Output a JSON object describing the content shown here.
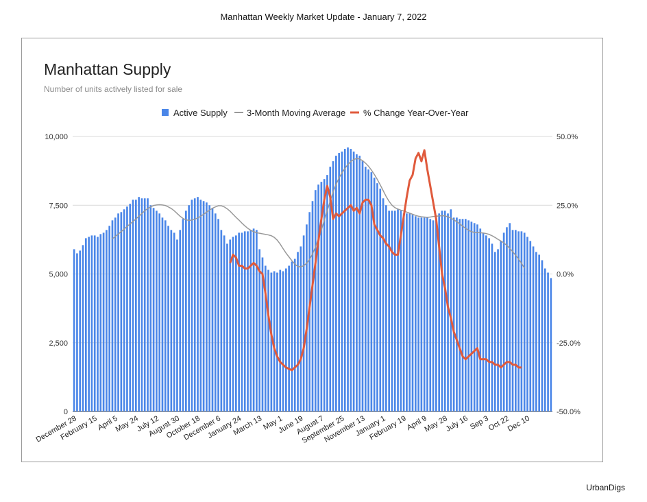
{
  "header": {
    "title": "Manhattan Weekly Market Update - January 7, 2022"
  },
  "brand": {
    "name": "UrbanDigs"
  },
  "colors": {
    "bars": "#4a86e8",
    "moving_average": "#999999",
    "yoy": "#e05a3c",
    "grid": "#d9d9d9"
  },
  "chart_data": {
    "type": "bar",
    "title": "Manhattan Supply",
    "subtitle": "Number of units actively listed for sale",
    "legend": {
      "placement": "top",
      "entries": [
        "Active Supply",
        "3-Month Moving Average",
        "% Change Year-Over-Year"
      ]
    },
    "y_left": {
      "min": 0,
      "max": 10000,
      "ticks": [
        0,
        2500,
        5000,
        7500,
        10000
      ],
      "tick_labels": [
        "0",
        "2,500",
        "5,000",
        "7,500",
        "10,000"
      ]
    },
    "y_right": {
      "min": -50,
      "max": 50,
      "ticks": [
        -50,
        -25,
        0,
        25,
        50
      ],
      "tick_labels": [
        "-50.0%",
        "-25.0%",
        "0.0%",
        "25.0%",
        "50.0%"
      ]
    },
    "grid": true,
    "x_labels": [
      {
        "index": 0,
        "label": "December 28"
      },
      {
        "index": 7,
        "label": "February 15"
      },
      {
        "index": 14,
        "label": "April 5"
      },
      {
        "index": 21,
        "label": "May 24"
      },
      {
        "index": 28,
        "label": "July 12"
      },
      {
        "index": 35,
        "label": "August 30"
      },
      {
        "index": 42,
        "label": "October 18"
      },
      {
        "index": 49,
        "label": "December 6"
      },
      {
        "index": 56,
        "label": "January 24"
      },
      {
        "index": 63,
        "label": "March 13"
      },
      {
        "index": 70,
        "label": "May 1"
      },
      {
        "index": 77,
        "label": "June 19"
      },
      {
        "index": 84,
        "label": "August 7"
      },
      {
        "index": 91,
        "label": "September 25"
      },
      {
        "index": 98,
        "label": "November 13"
      },
      {
        "index": 105,
        "label": "January 1"
      },
      {
        "index": 112,
        "label": "February 19"
      },
      {
        "index": 119,
        "label": "April 9"
      },
      {
        "index": 126,
        "label": "May 28"
      },
      {
        "index": 133,
        "label": "July 16"
      },
      {
        "index": 140,
        "label": "Sep 3"
      },
      {
        "index": 147,
        "label": "Oct 22"
      },
      {
        "index": 154,
        "label": "Dec 10"
      }
    ],
    "series": [
      {
        "name": "Active Supply",
        "type": "bar",
        "values": [
          5900,
          5750,
          5850,
          6050,
          6300,
          6350,
          6400,
          6400,
          6350,
          6450,
          6500,
          6600,
          6750,
          6950,
          7050,
          7200,
          7250,
          7350,
          7450,
          7550,
          7700,
          7700,
          7800,
          7750,
          7750,
          7750,
          7500,
          7400,
          7300,
          7200,
          7050,
          6950,
          6750,
          6600,
          6500,
          6250,
          6600,
          7000,
          7300,
          7500,
          7700,
          7750,
          7800,
          7700,
          7650,
          7600,
          7500,
          7400,
          7200,
          7000,
          6600,
          6400,
          6100,
          6250,
          6350,
          6400,
          6500,
          6500,
          6550,
          6550,
          6600,
          6650,
          6600,
          5900,
          5600,
          5300,
          5150,
          5050,
          5100,
          5050,
          5150,
          5100,
          5200,
          5300,
          5450,
          5550,
          5800,
          6000,
          6400,
          6800,
          7250,
          7650,
          8050,
          8250,
          8350,
          8450,
          8600,
          8900,
          9100,
          9300,
          9400,
          9450,
          9550,
          9600,
          9550,
          9450,
          9350,
          9300,
          9100,
          8900,
          8800,
          8700,
          8500,
          8300,
          8100,
          7750,
          7500,
          7300,
          7300,
          7300,
          7350,
          7300,
          7200,
          7200,
          7200,
          7150,
          7100,
          7050,
          7050,
          7050,
          7050,
          7000,
          6950,
          6950,
          7200,
          7300,
          7300,
          7200,
          7350,
          7050,
          7050,
          7000,
          7000,
          7000,
          6950,
          6900,
          6850,
          6800,
          6650,
          6500,
          6400,
          6300,
          6100,
          5800,
          5900,
          6200,
          6500,
          6700,
          6850,
          6600,
          6600,
          6550,
          6550,
          6500,
          6350,
          6200,
          6000,
          5800,
          5700,
          5500,
          5200,
          5050,
          4850
        ]
      },
      {
        "name": "3-Month Moving Average",
        "type": "line",
        "start_index": 13,
        "values": [
          6280,
          6360,
          6450,
          6540,
          6630,
          6730,
          6820,
          6910,
          7000,
          7100,
          7200,
          7300,
          7380,
          7440,
          7490,
          7510,
          7520,
          7510,
          7490,
          7440,
          7380,
          7300,
          7200,
          7100,
          7020,
          6970,
          6950,
          6960,
          6990,
          7040,
          7100,
          7170,
          7250,
          7320,
          7390,
          7440,
          7480,
          7480,
          7440,
          7370,
          7280,
          7170,
          7060,
          6960,
          6850,
          6750,
          6660,
          6590,
          6540,
          6500,
          6480,
          6460,
          6440,
          6420,
          6390,
          6330,
          6230,
          6090,
          5920,
          5760,
          5620,
          5480,
          5360,
          5270,
          5260,
          5300,
          5390,
          5530,
          5730,
          5980,
          6280,
          6600,
          6950,
          7300,
          7650,
          7980,
          8260,
          8490,
          8680,
          8840,
          8980,
          9090,
          9160,
          9200,
          9180,
          9120,
          9030,
          8920,
          8780,
          8620,
          8440,
          8240,
          8030,
          7820,
          7640,
          7500,
          7410,
          7360,
          7320,
          7290,
          7250,
          7210,
          7170,
          7130,
          7100,
          7080,
          7070,
          7060,
          7070,
          7090,
          7100,
          7110,
          7120,
          7110,
          7080,
          7030,
          6970,
          6900,
          6820,
          6740,
          6660,
          6590,
          6540,
          6510,
          6510,
          6500,
          6490,
          6470,
          6440,
          6390,
          6330,
          6260,
          6200,
          6130,
          6040,
          5930,
          5810,
          5680,
          5540,
          5390,
          5210
        ]
      },
      {
        "name": "% Change Year-Over-Year",
        "type": "line",
        "axis": "right",
        "start_index": 53,
        "values": [
          4,
          7,
          6,
          3,
          3,
          2,
          2,
          3,
          4,
          3,
          1,
          0,
          -7,
          -15,
          -22,
          -27,
          -30,
          -32,
          -33,
          -34,
          -34.5,
          -35,
          -34,
          -33,
          -31,
          -27,
          -20,
          -12,
          -4,
          4,
          12,
          20,
          27,
          32,
          28,
          20,
          22,
          21,
          22,
          23,
          24,
          25,
          23,
          24,
          22,
          26,
          27,
          27,
          25,
          18,
          16,
          14,
          13,
          11,
          10,
          8,
          7,
          7,
          14,
          21,
          28,
          34,
          36,
          42,
          44,
          41,
          45,
          38,
          32,
          26,
          20,
          10,
          0,
          -5,
          -12,
          -16,
          -21,
          -24,
          -27,
          -30,
          -31,
          -30,
          -29,
          -28,
          -27,
          -31,
          -31,
          -31,
          -32,
          -32,
          -33,
          -33,
          -34,
          -33,
          -32,
          -32,
          -33,
          -33,
          -34,
          -34
        ]
      }
    ]
  }
}
